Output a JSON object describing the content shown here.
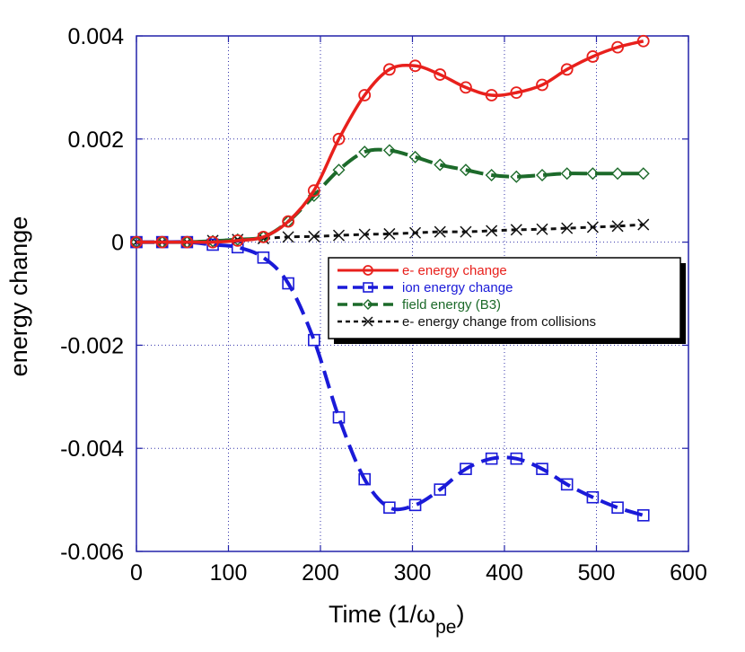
{
  "chart_data": {
    "type": "line",
    "title": "",
    "xlabel": "Time",
    "xlabel_unit_prefix": "(1/",
    "xlabel_unit_symbol": "ω",
    "xlabel_unit_subscript": "pe",
    "xlabel_unit_suffix": ")",
    "ylabel": "energy change",
    "xlim": [
      0,
      600
    ],
    "ylim": [
      -0.006,
      0.004
    ],
    "xticks": [
      0,
      100,
      200,
      300,
      400,
      500,
      600
    ],
    "xtick_labels": [
      "0",
      "100",
      "200",
      "300",
      "400",
      "500",
      "600"
    ],
    "yticks": [
      0.004,
      0.002,
      0,
      -0.002,
      -0.004,
      -0.006
    ],
    "ytick_labels": [
      "0.004",
      "0.002",
      "0",
      "-0.002",
      "-0.004",
      "-0.006"
    ],
    "grid": true,
    "legend_position": "center-right",
    "series": [
      {
        "name": "e- energy change",
        "color": "#e8201c",
        "line_style": "solid",
        "marker": "circle",
        "x": [
          0,
          28,
          55,
          83,
          110,
          138,
          165,
          193,
          220,
          248,
          275,
          303,
          330,
          358,
          386,
          413,
          441,
          468,
          496,
          523,
          551
        ],
        "y": [
          0,
          0,
          0,
          0,
          3e-05,
          0.0001,
          0.0004,
          0.001,
          0.002,
          0.00285,
          0.00335,
          0.00342,
          0.00325,
          0.003,
          0.00285,
          0.0029,
          0.00305,
          0.00335,
          0.0036,
          0.00378,
          0.0039
        ]
      },
      {
        "name": "ion energy change",
        "color": "#1a1ad8",
        "line_style": "dashed",
        "marker": "square",
        "x": [
          0,
          28,
          55,
          83,
          110,
          138,
          165,
          193,
          220,
          248,
          275,
          303,
          330,
          358,
          386,
          413,
          441,
          468,
          496,
          523,
          551
        ],
        "y": [
          0,
          0,
          0,
          -5e-05,
          -0.0001,
          -0.0003,
          -0.0008,
          -0.0019,
          -0.0034,
          -0.0046,
          -0.00515,
          -0.0051,
          -0.0048,
          -0.0044,
          -0.0042,
          -0.0042,
          -0.0044,
          -0.0047,
          -0.00495,
          -0.00515,
          -0.0053
        ]
      },
      {
        "name": "field energy (B3)",
        "color": "#1c6a2a",
        "line_style": "dashed",
        "marker": "diamond",
        "x": [
          0,
          28,
          55,
          83,
          110,
          138,
          165,
          193,
          220,
          248,
          275,
          303,
          330,
          358,
          386,
          413,
          441,
          468,
          496,
          523,
          551
        ],
        "y": [
          0,
          0,
          0,
          2e-05,
          5e-05,
          0.0001,
          0.0004,
          0.0009,
          0.0014,
          0.00175,
          0.00178,
          0.00165,
          0.0015,
          0.0014,
          0.0013,
          0.00127,
          0.0013,
          0.00133,
          0.00133,
          0.00133,
          0.00133
        ]
      },
      {
        "name": "e- energy change from collisions",
        "color": "#111111",
        "line_style": "dotted",
        "marker": "x",
        "x": [
          0,
          28,
          55,
          83,
          110,
          138,
          165,
          193,
          220,
          248,
          275,
          303,
          330,
          358,
          386,
          413,
          441,
          468,
          496,
          523,
          551
        ],
        "y": [
          0,
          0,
          0,
          3e-05,
          5e-05,
          7e-05,
          0.0001,
          0.00011,
          0.00013,
          0.00015,
          0.00016,
          0.00018,
          0.0002,
          0.0002,
          0.00022,
          0.00024,
          0.00025,
          0.00027,
          0.00029,
          0.00031,
          0.00034
        ]
      }
    ]
  }
}
